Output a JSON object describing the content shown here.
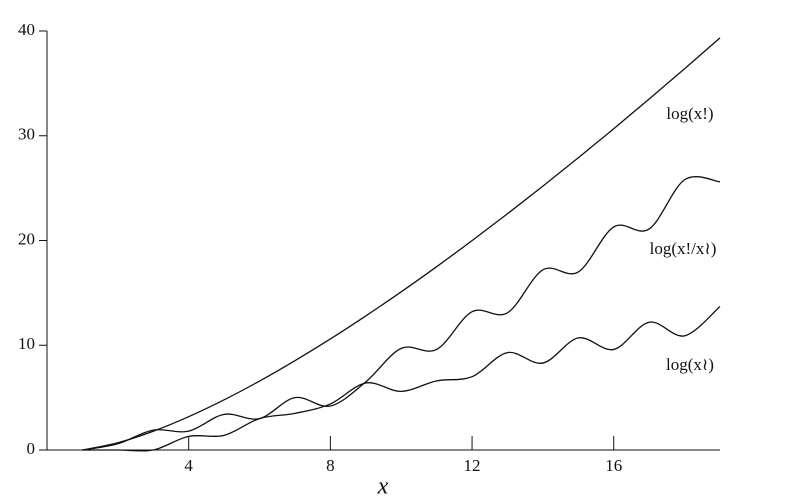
{
  "chart_data": {
    "type": "line",
    "x_label": "x",
    "x": [
      1,
      2,
      3,
      4,
      5,
      6,
      7,
      8,
      9,
      10,
      11,
      12,
      13,
      14,
      15,
      16,
      17,
      18,
      19
    ],
    "series": [
      {
        "name": "log(x!)",
        "color": "#111111",
        "values": [
          0,
          0.69,
          1.79,
          3.18,
          4.79,
          6.58,
          8.53,
          10.6,
          12.8,
          15.1,
          17.5,
          19.99,
          22.55,
          25.19,
          27.9,
          30.67,
          33.51,
          36.4,
          39.34
        ]
      },
      {
        "name": "log(x!/x≀)",
        "color": "#111111",
        "values": [
          0,
          0.6,
          1.9,
          1.8,
          3.4,
          3.0,
          5.0,
          4.2,
          6.5,
          9.7,
          9.6,
          13.2,
          13.1,
          17.2,
          17.0,
          21.3,
          21.1,
          25.8,
          25.6
        ]
      },
      {
        "name": "log(x≀)",
        "color": "#111111",
        "values": [
          0,
          0,
          0,
          1.3,
          1.4,
          3.0,
          3.5,
          4.4,
          6.4,
          5.6,
          6.6,
          7.0,
          9.3,
          8.3,
          10.7,
          9.6,
          12.2,
          10.9,
          13.7
        ]
      }
    ],
    "xlim": [
      0,
      19
    ],
    "ylim": [
      0,
      40
    ],
    "xticks": [
      4,
      8,
      12,
      16
    ],
    "yticks": [
      0,
      10,
      20,
      30,
      40
    ],
    "grid": false
  }
}
